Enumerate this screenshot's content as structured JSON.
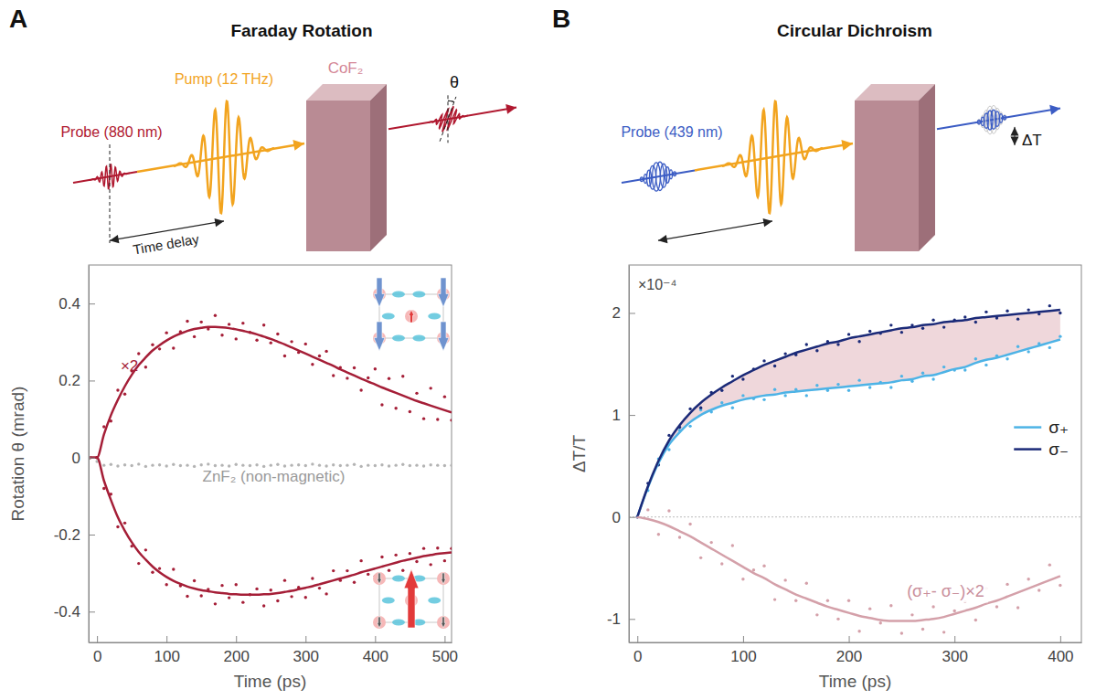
{
  "chart_data": [
    {
      "type": "scatter",
      "panel": "A",
      "title": "Faraday Rotation",
      "schematic": {
        "probe": "Probe (880 nm)",
        "pump": "Pump (12 THz)",
        "sample": "CoF₂",
        "signal": "θ",
        "delay": "Time delay"
      },
      "x_label": "Time (ps)",
      "y_label": "Rotation θ (mrad)",
      "xlim": [
        -12,
        510
      ],
      "ylim": [
        -0.48,
        0.5
      ],
      "xticks": [
        0,
        100,
        200,
        300,
        400,
        500
      ],
      "yticks": [
        -0.4,
        -0.2,
        0,
        0.2,
        0.4
      ],
      "grid": false,
      "annotations": [
        "×2",
        "ZnF₂ (non-magnetic)"
      ],
      "x": [
        -10,
        0,
        10,
        20,
        30,
        40,
        50,
        60,
        70,
        80,
        90,
        100,
        110,
        120,
        130,
        140,
        150,
        160,
        170,
        180,
        190,
        200,
        210,
        220,
        230,
        240,
        250,
        260,
        270,
        280,
        290,
        300,
        310,
        320,
        330,
        340,
        350,
        360,
        370,
        380,
        390,
        400,
        410,
        420,
        430,
        440,
        450,
        460,
        470,
        480,
        490,
        500,
        510
      ],
      "series": [
        {
          "type": "scatter",
          "marker": "circle",
          "color": "#a51e37",
          "values": [
            0,
            0,
            0.08,
            0.095,
            0.175,
            0.165,
            0.225,
            0.27,
            0.235,
            0.293,
            0.282,
            0.324,
            0.284,
            0.327,
            0.354,
            0.314,
            0.352,
            0.334,
            0.369,
            0.318,
            0.346,
            0.308,
            0.349,
            0.325,
            0.305,
            0.344,
            0.298,
            0.321,
            0.264,
            0.301,
            0.273,
            0.295,
            0.242,
            0.264,
            0.276,
            0.213,
            0.234,
            0.206,
            0.233,
            0.175,
            0.207,
            0.23,
            0.137,
            0.205,
            0.128,
            0.211,
            0.119,
            0.167,
            0.101,
            0.18,
            0.099,
            0.158,
            0.097
          ]
        },
        {
          "type": "line",
          "color": "#a51e37",
          "values": [
            0,
            0,
            0.06,
            0.11,
            0.15,
            0.185,
            0.215,
            0.24,
            0.26,
            0.278,
            0.292,
            0.304,
            0.314,
            0.322,
            0.329,
            0.334,
            0.337,
            0.339,
            0.339,
            0.338,
            0.336,
            0.333,
            0.329,
            0.325,
            0.32,
            0.314,
            0.308,
            0.301,
            0.294,
            0.286,
            0.278,
            0.27,
            0.262,
            0.254,
            0.246,
            0.238,
            0.229,
            0.221,
            0.213,
            0.205,
            0.197,
            0.19,
            0.182,
            0.175,
            0.168,
            0.161,
            0.154,
            0.147,
            0.141,
            0.135,
            0.129,
            0.123,
            0.117
          ]
        },
        {
          "type": "scatter",
          "marker": "circle",
          "color": "#a51e37",
          "values": [
            0,
            0,
            -0.08,
            -0.095,
            -0.18,
            -0.17,
            -0.23,
            -0.275,
            -0.24,
            -0.298,
            -0.288,
            -0.33,
            -0.29,
            -0.333,
            -0.36,
            -0.32,
            -0.359,
            -0.342,
            -0.38,
            -0.332,
            -0.364,
            -0.33,
            -0.376,
            -0.356,
            -0.341,
            -0.385,
            -0.344,
            -0.372,
            -0.319,
            -0.361,
            -0.337,
            -0.363,
            -0.314,
            -0.339,
            -0.354,
            -0.294,
            -0.319,
            -0.294,
            -0.324,
            -0.268,
            -0.303,
            -0.308,
            -0.258,
            -0.293,
            -0.253,
            -0.293,
            -0.249,
            -0.27,
            -0.236,
            -0.278,
            -0.235,
            -0.268,
            -0.236
          ]
        },
        {
          "type": "line",
          "color": "#a51e37",
          "values": [
            0,
            0,
            -0.06,
            -0.11,
            -0.155,
            -0.19,
            -0.22,
            -0.245,
            -0.265,
            -0.283,
            -0.298,
            -0.31,
            -0.32,
            -0.328,
            -0.335,
            -0.34,
            -0.344,
            -0.347,
            -0.35,
            -0.352,
            -0.354,
            -0.355,
            -0.356,
            -0.356,
            -0.356,
            -0.355,
            -0.354,
            -0.352,
            -0.349,
            -0.346,
            -0.342,
            -0.338,
            -0.334,
            -0.329,
            -0.324,
            -0.319,
            -0.314,
            -0.309,
            -0.304,
            -0.298,
            -0.293,
            -0.288,
            -0.283,
            -0.278,
            -0.273,
            -0.268,
            -0.264,
            -0.26,
            -0.256,
            -0.253,
            -0.25,
            -0.248,
            -0.246
          ]
        },
        {
          "type": "scatter",
          "marker": "circle",
          "color": "#b4b4b4",
          "values": [
            0,
            -0.01,
            -0.02,
            -0.018,
            -0.022,
            -0.019,
            -0.021,
            -0.017,
            -0.023,
            -0.02,
            -0.019,
            -0.022,
            -0.018,
            -0.021,
            -0.02,
            -0.023,
            -0.019,
            -0.017,
            -0.021,
            -0.02,
            -0.022,
            -0.018,
            -0.02,
            -0.021,
            -0.019,
            -0.023,
            -0.02,
            -0.018,
            -0.022,
            -0.02,
            -0.019,
            -0.021,
            -0.017,
            -0.02,
            -0.022,
            -0.019,
            -0.021,
            -0.02,
            -0.018,
            -0.023,
            -0.02,
            -0.021,
            -0.019,
            -0.022,
            -0.02,
            -0.018,
            -0.021,
            -0.02,
            -0.022,
            -0.019,
            -0.02,
            -0.021,
            -0.02
          ]
        }
      ]
    },
    {
      "type": "scatter",
      "panel": "B",
      "title": "Circular Dichroism",
      "schematic": {
        "probe": "Probe (439 nm)",
        "signal": "ΔT"
      },
      "x_label": "Time (ps)",
      "y_label": "ΔT/T",
      "xlim": [
        -8,
        420
      ],
      "ylim": [
        -1.23,
        2.47
      ],
      "xticks": [
        0,
        100,
        200,
        300,
        400
      ],
      "yticks": [
        -1,
        0,
        1,
        2
      ],
      "grid": false,
      "legend": "right",
      "annotations": [
        "×10⁻⁴",
        "(σ₊- σ₋)×2"
      ],
      "x": [
        0,
        10,
        20,
        30,
        40,
        50,
        60,
        70,
        80,
        90,
        100,
        110,
        120,
        130,
        140,
        150,
        160,
        170,
        180,
        190,
        200,
        210,
        220,
        230,
        240,
        250,
        260,
        270,
        280,
        290,
        300,
        310,
        320,
        330,
        340,
        350,
        360,
        370,
        380,
        390,
        400
      ],
      "series": [
        {
          "type": "scatter",
          "marker": "circle",
          "color": "#4db3e6",
          "values": [
            0,
            0.26,
            0.57,
            0.66,
            0.85,
            0.89,
            1.05,
            1.03,
            1.12,
            1.07,
            1.19,
            1.16,
            1.15,
            1.25,
            1.19,
            1.25,
            1.19,
            1.29,
            1.24,
            1.3,
            1.24,
            1.34,
            1.27,
            1.32,
            1.27,
            1.38,
            1.33,
            1.41,
            1.35,
            1.47,
            1.44,
            1.44,
            1.55,
            1.49,
            1.58,
            1.55,
            1.67,
            1.62,
            1.7,
            1.66,
            1.77
          ]
        },
        {
          "type": "line",
          "name": "σ₊",
          "color": "#4db3e6",
          "values": [
            0,
            0.29,
            0.53,
            0.71,
            0.83,
            0.93,
            1.0,
            1.05,
            1.09,
            1.12,
            1.15,
            1.17,
            1.19,
            1.2,
            1.22,
            1.23,
            1.24,
            1.25,
            1.26,
            1.27,
            1.28,
            1.29,
            1.3,
            1.31,
            1.32,
            1.34,
            1.35,
            1.38,
            1.39,
            1.42,
            1.45,
            1.47,
            1.51,
            1.54,
            1.56,
            1.59,
            1.62,
            1.65,
            1.68,
            1.71,
            1.74
          ]
        },
        {
          "type": "scatter",
          "marker": "circle",
          "color": "#1b2a78",
          "values": [
            0,
            0.33,
            0.51,
            0.8,
            0.88,
            1.06,
            1.07,
            1.22,
            1.24,
            1.38,
            1.35,
            1.45,
            1.53,
            1.48,
            1.6,
            1.59,
            1.69,
            1.63,
            1.72,
            1.69,
            1.79,
            1.72,
            1.82,
            1.8,
            1.88,
            1.81,
            1.88,
            1.85,
            1.93,
            1.86,
            1.93,
            1.96,
            1.91,
            2.01,
            1.95,
            2.02,
            1.94,
            2.03,
            1.99,
            2.07,
            2.0
          ]
        },
        {
          "type": "line",
          "name": "σ₋",
          "color": "#1b2a78",
          "values": [
            0,
            0.3,
            0.55,
            0.75,
            0.9,
            1.02,
            1.12,
            1.2,
            1.27,
            1.33,
            1.39,
            1.44,
            1.49,
            1.53,
            1.57,
            1.61,
            1.64,
            1.67,
            1.7,
            1.72,
            1.75,
            1.77,
            1.79,
            1.81,
            1.83,
            1.85,
            1.86,
            1.88,
            1.89,
            1.91,
            1.92,
            1.93,
            1.95,
            1.96,
            1.97,
            1.98,
            1.99,
            2.0,
            2.01,
            2.02,
            2.03
          ]
        },
        {
          "type": "scatter",
          "marker": "circle",
          "color": "#d4a0a9",
          "values": [
            0,
            0.07,
            -0.17,
            0.06,
            -0.2,
            -0.07,
            -0.4,
            -0.25,
            -0.46,
            -0.28,
            -0.61,
            -0.52,
            -0.48,
            -0.81,
            -0.62,
            -0.82,
            -0.65,
            -0.96,
            -0.82,
            -1.0,
            -0.82,
            -1.12,
            -0.9,
            -1.04,
            -0.87,
            -1.14,
            -0.96,
            -1.1,
            -0.88,
            -1.13,
            -0.92,
            -0.83,
            -1.01,
            -0.7,
            -0.88,
            -0.66,
            -0.89,
            -0.61,
            -0.72,
            -0.47,
            -0.67
          ]
        },
        {
          "type": "line",
          "color": "#d4a0a9",
          "values": [
            0,
            -0.02,
            -0.05,
            -0.09,
            -0.14,
            -0.19,
            -0.25,
            -0.31,
            -0.37,
            -0.43,
            -0.49,
            -0.55,
            -0.6,
            -0.66,
            -0.71,
            -0.76,
            -0.8,
            -0.84,
            -0.88,
            -0.91,
            -0.94,
            -0.97,
            -0.99,
            -1.01,
            -1.02,
            -1.02,
            -1.02,
            -1.01,
            -1.0,
            -0.98,
            -0.95,
            -0.92,
            -0.89,
            -0.85,
            -0.82,
            -0.78,
            -0.74,
            -0.7,
            -0.66,
            -0.62,
            -0.58
          ]
        }
      ]
    }
  ]
}
